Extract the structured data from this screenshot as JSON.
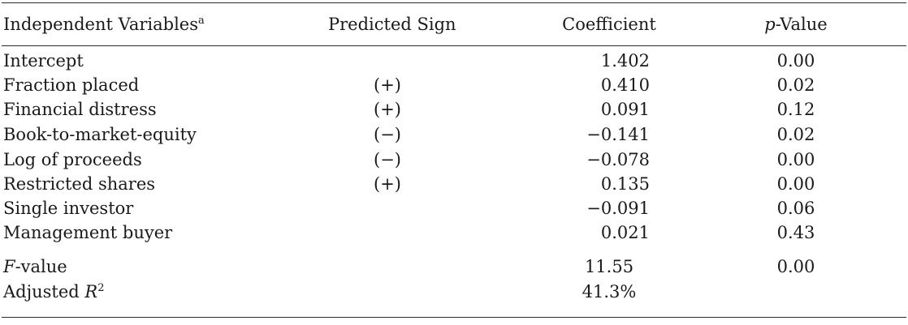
{
  "table": {
    "headers": {
      "variables": "Independent Variables",
      "variables_note": "a",
      "sign": "Predicted Sign",
      "coefficient": "Coefficient",
      "pvalue_italic": "p",
      "pvalue_rest": "-Value"
    },
    "rows": [
      {
        "variable": "Intercept",
        "sign": "",
        "coefficient": "1.402",
        "p_value": "0.00"
      },
      {
        "variable": "Fraction placed",
        "sign": "(+)",
        "coefficient": "0.410",
        "p_value": "0.02"
      },
      {
        "variable": "Financial distress",
        "sign": "(+)",
        "coefficient": "0.091",
        "p_value": "0.12"
      },
      {
        "variable": "Book-to-market-equity",
        "sign": "(−)",
        "coefficient": "−0.141",
        "p_value": "0.02"
      },
      {
        "variable": "Log of proceeds",
        "sign": "(−)",
        "coefficient": "−0.078",
        "p_value": "0.00"
      },
      {
        "variable": "Restricted shares",
        "sign": "(+)",
        "coefficient": "0.135",
        "p_value": "0.00"
      },
      {
        "variable": "Single investor",
        "sign": "",
        "coefficient": "−0.091",
        "p_value": "0.06"
      },
      {
        "variable": "Management buyer",
        "sign": "",
        "coefficient": "0.021",
        "p_value": "0.43"
      }
    ],
    "summary": {
      "f_label_italic": "F",
      "f_label_rest": "-value",
      "f_value": "11.55",
      "f_p_value": "0.00",
      "r2_label": "Adjusted",
      "r2_symbol": "R",
      "r2_power": "2",
      "r2_value": "41.3%"
    }
  }
}
